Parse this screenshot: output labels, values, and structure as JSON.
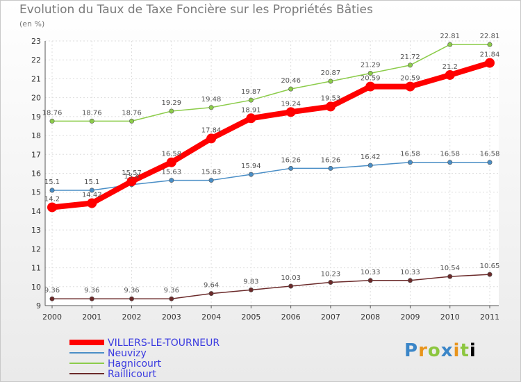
{
  "chart_data": {
    "type": "line",
    "title": "Evolution du Taux de Taxe Foncière sur les Propriétés Bâties",
    "subtitle": "(en %)",
    "x": [
      "2000",
      "2001",
      "2002",
      "2003",
      "2004",
      "2005",
      "2006",
      "2007",
      "2008",
      "2009",
      "2010",
      "2011"
    ],
    "ylim": [
      9,
      23
    ],
    "yticks": [
      "9",
      "10",
      "11",
      "12",
      "13",
      "14",
      "15",
      "16",
      "17",
      "18",
      "19",
      "20",
      "21",
      "22",
      "23"
    ],
    "grid": true,
    "legend_position": "bottom-left",
    "series": [
      {
        "name": "VILLERS-LE-TOURNEUR",
        "color": "#ff0000",
        "emphasis": true,
        "values": [
          14.2,
          14.42,
          15.57,
          16.58,
          17.84,
          18.91,
          19.24,
          19.53,
          20.59,
          20.59,
          21.2,
          21.84
        ],
        "labels": [
          "14.2",
          "14.42",
          "15.57",
          "16.58",
          "17.84",
          "18.91",
          "19.24",
          "19.53",
          "20.59",
          "20.59",
          "21.2",
          "21.84"
        ]
      },
      {
        "name": "Neuvizy",
        "color": "#4a8ec6",
        "emphasis": false,
        "values": [
          15.1,
          15.1,
          15.4,
          15.63,
          15.63,
          15.94,
          16.26,
          16.26,
          16.42,
          16.58,
          16.58,
          16.58
        ],
        "labels": [
          "15.1",
          "15.1",
          "15.4",
          "15.63",
          "15.63",
          "15.94",
          "16.26",
          "16.26",
          "16.42",
          "16.58",
          "16.58",
          "16.58"
        ]
      },
      {
        "name": "Hagnicourt",
        "color": "#8ccc4a",
        "emphasis": false,
        "values": [
          18.76,
          18.76,
          18.76,
          19.29,
          19.48,
          19.87,
          20.46,
          20.87,
          21.29,
          21.72,
          22.81,
          22.81
        ],
        "labels": [
          "18.76",
          "18.76",
          "18.76",
          "19.29",
          "19.48",
          "19.87",
          "20.46",
          "20.87",
          "21.29",
          "21.72",
          "22.81",
          "22.81"
        ]
      },
      {
        "name": "Raillicourt",
        "color": "#6b2a2a",
        "emphasis": false,
        "values": [
          9.36,
          9.36,
          9.36,
          9.36,
          9.64,
          9.83,
          10.03,
          10.23,
          10.33,
          10.33,
          10.54,
          10.65
        ],
        "labels": [
          "9.36",
          "9.36",
          "9.36",
          "9.36",
          "9.64",
          "9.83",
          "10.03",
          "10.23",
          "10.33",
          "10.33",
          "10.54",
          "10.65"
        ]
      }
    ]
  },
  "brand": {
    "logo_letters": [
      "P",
      "r",
      "o",
      "x",
      "i",
      "t",
      "i"
    ]
  }
}
